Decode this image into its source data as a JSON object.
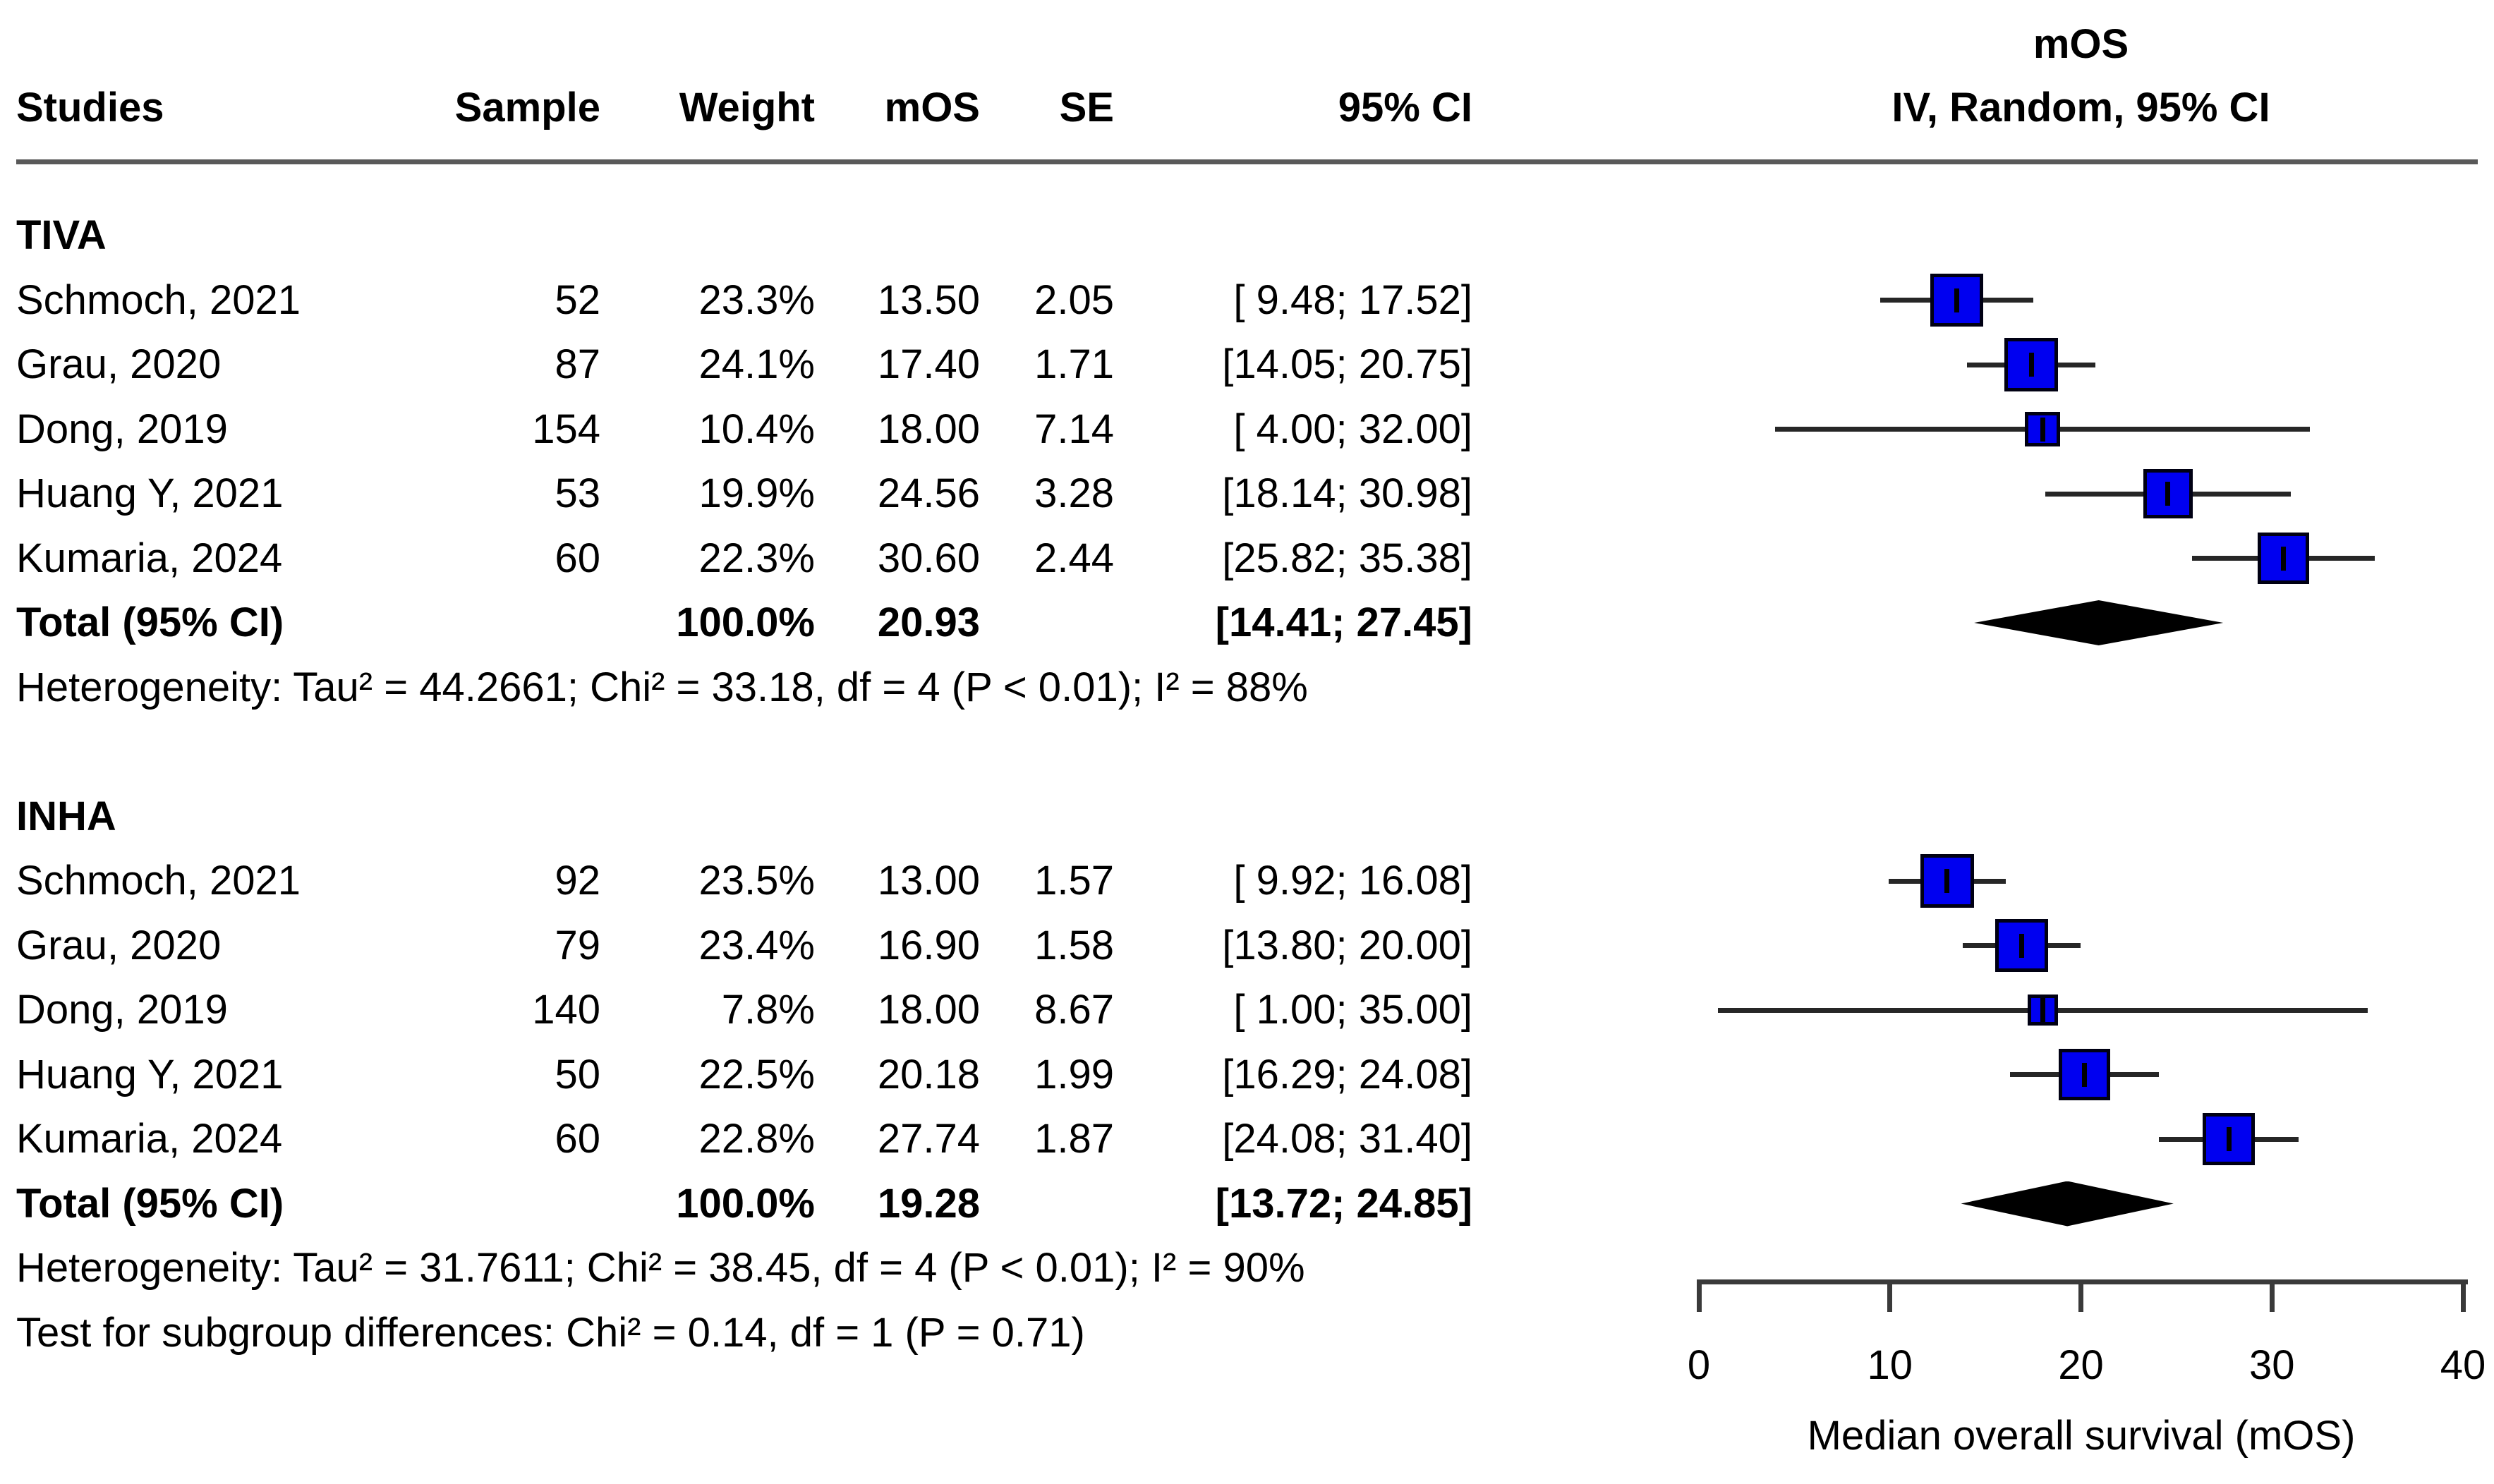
{
  "chart_data": {
    "type": "forest",
    "columns": [
      "Studies",
      "Sample",
      "Weight",
      "mOS",
      "SE",
      "95% CI"
    ],
    "effect_header": [
      "mOS",
      "IV, Random, 95% CI"
    ],
    "x_axis": {
      "label": "Median overall survival (mOS)",
      "min": 0,
      "max": 40,
      "ticks": [
        0,
        10,
        20,
        30,
        40
      ]
    },
    "colors": {
      "box": "#0000f0",
      "box_border": "#000013",
      "ci_line": "#262626",
      "diamond": "#000000",
      "divider": "#595959",
      "axis": "#3a3a3a",
      "text": "#000000"
    },
    "groups": [
      {
        "name": "TIVA",
        "studies": [
          {
            "label": "Schmoch, 2021",
            "sample": "52",
            "weight": "23.3%",
            "weight_pct": 23.3,
            "mos": 13.5,
            "mos_text": "13.50",
            "se": "2.05",
            "ci_text": "[ 9.48; 17.52]",
            "ci_lo": 9.48,
            "ci_hi": 17.52
          },
          {
            "label": "Grau, 2020",
            "sample": "87",
            "weight": "24.1%",
            "weight_pct": 24.1,
            "mos": 17.4,
            "mos_text": "17.40",
            "se": "1.71",
            "ci_text": "[14.05; 20.75]",
            "ci_lo": 14.05,
            "ci_hi": 20.75
          },
          {
            "label": "Dong, 2019",
            "sample": "154",
            "weight": "10.4%",
            "weight_pct": 10.4,
            "mos": 18.0,
            "mos_text": "18.00",
            "se": "7.14",
            "ci_text": "[ 4.00; 32.00]",
            "ci_lo": 4.0,
            "ci_hi": 32.0
          },
          {
            "label": "Huang Y, 2021",
            "sample": "53",
            "weight": "19.9%",
            "weight_pct": 19.9,
            "mos": 24.56,
            "mos_text": "24.56",
            "se": "3.28",
            "ci_text": "[18.14; 30.98]",
            "ci_lo": 18.14,
            "ci_hi": 30.98
          },
          {
            "label": "Kumaria, 2024",
            "sample": "60",
            "weight": "22.3%",
            "weight_pct": 22.3,
            "mos": 30.6,
            "mos_text": "30.60",
            "se": "2.44",
            "ci_text": "[25.82; 35.38]",
            "ci_lo": 25.82,
            "ci_hi": 35.38
          }
        ],
        "total": {
          "label": "Total (95% CI)",
          "weight": "100.0%",
          "mos": 20.93,
          "mos_text": "20.93",
          "ci_text": "[14.41; 27.45]",
          "ci_lo": 14.41,
          "ci_hi": 27.45
        },
        "heterogeneity": "Heterogeneity: Tau² = 44.2661; Chi² = 33.18, df = 4 (P < 0.01); I² = 88%"
      },
      {
        "name": "INHA",
        "studies": [
          {
            "label": "Schmoch, 2021",
            "sample": "92",
            "weight": "23.5%",
            "weight_pct": 23.5,
            "mos": 13.0,
            "mos_text": "13.00",
            "se": "1.57",
            "ci_text": "[ 9.92; 16.08]",
            "ci_lo": 9.92,
            "ci_hi": 16.08
          },
          {
            "label": "Grau, 2020",
            "sample": "79",
            "weight": "23.4%",
            "weight_pct": 23.4,
            "mos": 16.9,
            "mos_text": "16.90",
            "se": "1.58",
            "ci_text": "[13.80; 20.00]",
            "ci_lo": 13.8,
            "ci_hi": 20.0
          },
          {
            "label": "Dong, 2019",
            "sample": "140",
            "weight": "7.8%",
            "weight_pct": 7.8,
            "mos": 18.0,
            "mos_text": "18.00",
            "se": "8.67",
            "ci_text": "[ 1.00; 35.00]",
            "ci_lo": 1.0,
            "ci_hi": 35.0
          },
          {
            "label": "Huang Y, 2021",
            "sample": "50",
            "weight": "22.5%",
            "weight_pct": 22.5,
            "mos": 20.18,
            "mos_text": "20.18",
            "se": "1.99",
            "ci_text": "[16.29; 24.08]",
            "ci_lo": 16.29,
            "ci_hi": 24.08
          },
          {
            "label": "Kumaria, 2024",
            "sample": "60",
            "weight": "22.8%",
            "weight_pct": 22.8,
            "mos": 27.74,
            "mos_text": "27.74",
            "se": "1.87",
            "ci_text": "[24.08; 31.40]",
            "ci_lo": 24.08,
            "ci_hi": 31.4
          }
        ],
        "total": {
          "label": "Total (95% CI)",
          "weight": "100.0%",
          "mos": 19.28,
          "mos_text": "19.28",
          "ci_text": "[13.72; 24.85]",
          "ci_lo": 13.72,
          "ci_hi": 24.85
        },
        "heterogeneity": "Heterogeneity: Tau² = 31.7611; Chi² = 38.45, df = 4 (P < 0.01); I² = 90%"
      }
    ],
    "subgroup_test": "Test for subgroup differences: Chi² = 0.14, df = 1 (P = 0.71)"
  }
}
